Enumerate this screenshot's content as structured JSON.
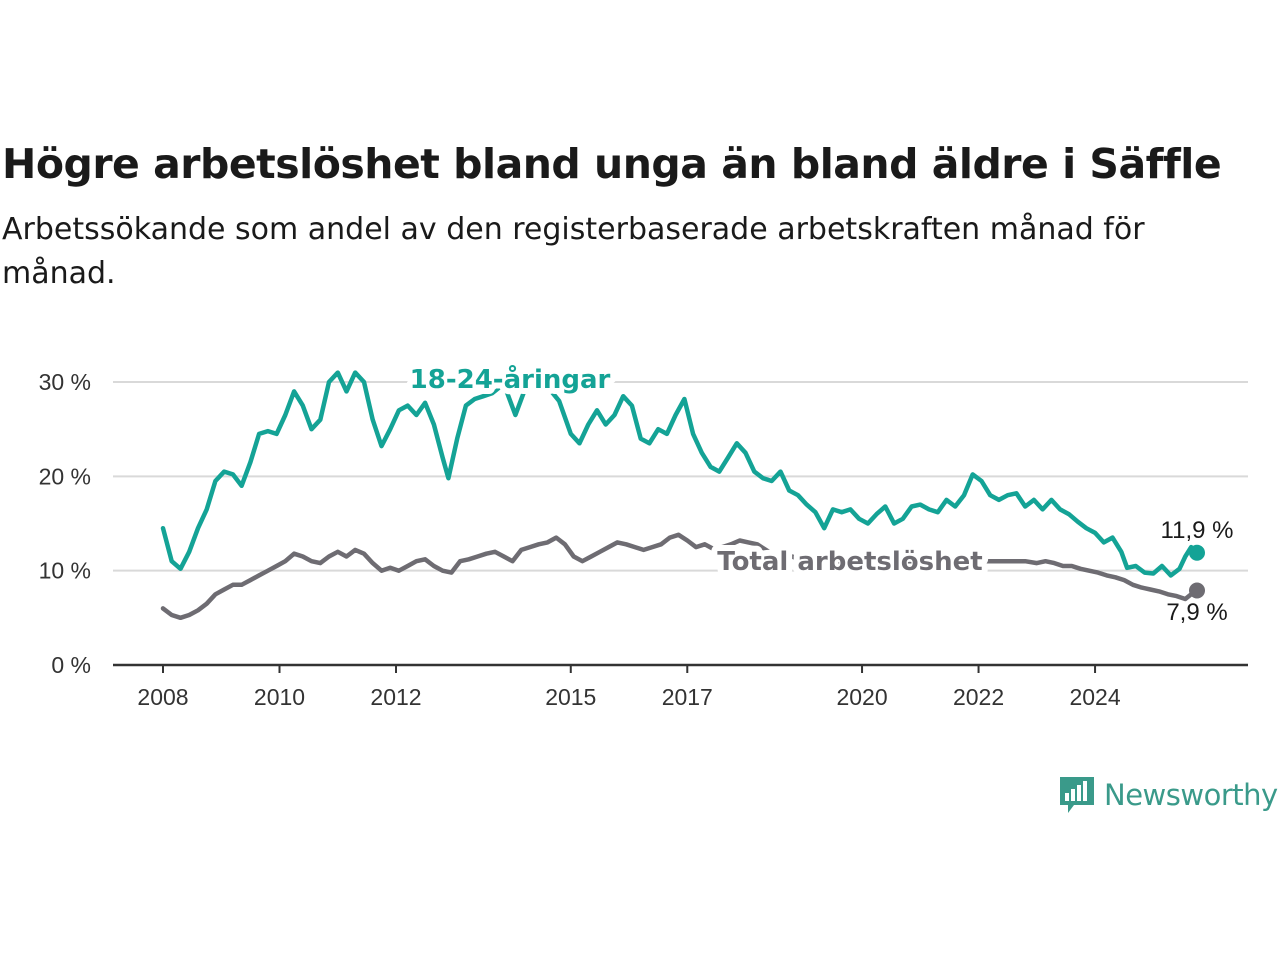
{
  "title": "Högre arbetslöshet bland unga än bland äldre i Säffle",
  "subtitle": "Arbetssökande som andel av den registerbaserade arbetskraften månad för månad.",
  "brand": {
    "name": "Newsworthy",
    "color": "#3a9a8a",
    "icon": "bar-chart-speech-bubble-icon"
  },
  "chart_data": {
    "type": "line",
    "ylim": [
      0,
      30
    ],
    "yticks": [
      0,
      10,
      20,
      30
    ],
    "ytick_labels": [
      "0 %",
      "10 %",
      "20 %",
      "30 %"
    ],
    "xlim": [
      2008,
      2025.75
    ],
    "xticks": [
      2008,
      2010,
      2012,
      2015,
      2017,
      2020,
      2022,
      2024
    ],
    "xtick_labels": [
      "2008",
      "2010",
      "2012",
      "2015",
      "2017",
      "2020",
      "2022",
      "2024"
    ],
    "grid": true,
    "series": [
      {
        "name": "18-24-åringar",
        "color": "#14a396",
        "end_label": "11,9 %",
        "points": [
          [
            2008.0,
            14.5
          ],
          [
            2008.15,
            11.0
          ],
          [
            2008.3,
            10.2
          ],
          [
            2008.45,
            12.0
          ],
          [
            2008.6,
            14.5
          ],
          [
            2008.75,
            16.5
          ],
          [
            2008.9,
            19.5
          ],
          [
            2009.05,
            20.5
          ],
          [
            2009.2,
            20.2
          ],
          [
            2009.35,
            19.0
          ],
          [
            2009.5,
            21.5
          ],
          [
            2009.65,
            24.5
          ],
          [
            2009.8,
            24.8
          ],
          [
            2009.95,
            24.5
          ],
          [
            2010.1,
            26.5
          ],
          [
            2010.25,
            29.0
          ],
          [
            2010.4,
            27.5
          ],
          [
            2010.55,
            25.0
          ],
          [
            2010.7,
            26.0
          ],
          [
            2010.85,
            30.0
          ],
          [
            2011.0,
            31.0
          ],
          [
            2011.15,
            29.0
          ],
          [
            2011.3,
            31.0
          ],
          [
            2011.45,
            30.0
          ],
          [
            2011.6,
            26.0
          ],
          [
            2011.75,
            23.2
          ],
          [
            2011.9,
            25.0
          ],
          [
            2012.05,
            27.0
          ],
          [
            2012.2,
            27.5
          ],
          [
            2012.35,
            26.5
          ],
          [
            2012.5,
            27.8
          ],
          [
            2012.65,
            25.5
          ],
          [
            2012.8,
            22.0
          ],
          [
            2012.9,
            19.8
          ],
          [
            2013.05,
            24.0
          ],
          [
            2013.2,
            27.5
          ],
          [
            2013.35,
            28.2
          ],
          [
            2013.5,
            28.5
          ],
          [
            2013.65,
            28.8
          ],
          [
            2013.85,
            29.8
          ],
          [
            2014.05,
            26.5
          ],
          [
            2014.2,
            29.0
          ],
          [
            2014.4,
            30.0
          ],
          [
            2014.6,
            29.5
          ],
          [
            2014.8,
            28.0
          ],
          [
            2015.0,
            24.5
          ],
          [
            2015.15,
            23.5
          ],
          [
            2015.3,
            25.5
          ],
          [
            2015.45,
            27.0
          ],
          [
            2015.6,
            25.5
          ],
          [
            2015.75,
            26.5
          ],
          [
            2015.9,
            28.5
          ],
          [
            2016.05,
            27.5
          ],
          [
            2016.2,
            24.0
          ],
          [
            2016.35,
            23.5
          ],
          [
            2016.5,
            25.0
          ],
          [
            2016.65,
            24.5
          ],
          [
            2016.8,
            26.5
          ],
          [
            2016.95,
            28.2
          ],
          [
            2017.1,
            24.5
          ],
          [
            2017.25,
            22.5
          ],
          [
            2017.4,
            21.0
          ],
          [
            2017.55,
            20.5
          ],
          [
            2017.7,
            22.0
          ],
          [
            2017.85,
            23.5
          ],
          [
            2018.0,
            22.5
          ],
          [
            2018.15,
            20.5
          ],
          [
            2018.3,
            19.8
          ],
          [
            2018.45,
            19.5
          ],
          [
            2018.6,
            20.5
          ],
          [
            2018.75,
            18.5
          ],
          [
            2018.9,
            18.0
          ],
          [
            2019.05,
            17.0
          ],
          [
            2019.2,
            16.2
          ],
          [
            2019.35,
            14.5
          ],
          [
            2019.5,
            16.5
          ],
          [
            2019.65,
            16.2
          ],
          [
            2019.8,
            16.5
          ],
          [
            2019.95,
            15.5
          ],
          [
            2020.1,
            15.0
          ],
          [
            2020.25,
            16.0
          ],
          [
            2020.4,
            16.8
          ],
          [
            2020.55,
            15.0
          ],
          [
            2020.7,
            15.5
          ],
          [
            2020.85,
            16.8
          ],
          [
            2021.0,
            17.0
          ],
          [
            2021.15,
            16.5
          ],
          [
            2021.3,
            16.2
          ],
          [
            2021.45,
            17.5
          ],
          [
            2021.6,
            16.8
          ],
          [
            2021.75,
            18.0
          ],
          [
            2021.9,
            20.2
          ],
          [
            2022.05,
            19.5
          ],
          [
            2022.2,
            18.0
          ],
          [
            2022.35,
            17.5
          ],
          [
            2022.5,
            18.0
          ],
          [
            2022.65,
            18.2
          ],
          [
            2022.8,
            16.8
          ],
          [
            2022.95,
            17.5
          ],
          [
            2023.1,
            16.5
          ],
          [
            2023.25,
            17.5
          ],
          [
            2023.4,
            16.5
          ],
          [
            2023.55,
            16.0
          ],
          [
            2023.7,
            15.2
          ],
          [
            2023.85,
            14.5
          ],
          [
            2024.0,
            14.0
          ],
          [
            2024.15,
            13.0
          ],
          [
            2024.3,
            13.5
          ],
          [
            2024.45,
            12.0
          ],
          [
            2024.55,
            10.3
          ],
          [
            2024.7,
            10.5
          ],
          [
            2024.85,
            9.8
          ],
          [
            2025.0,
            9.7
          ],
          [
            2025.15,
            10.5
          ],
          [
            2025.3,
            9.5
          ],
          [
            2025.45,
            10.2
          ],
          [
            2025.55,
            11.5
          ],
          [
            2025.65,
            12.5
          ],
          [
            2025.75,
            11.9
          ]
        ]
      },
      {
        "name": "Total arbetslöshet",
        "color": "#6e6c72",
        "end_label": "7,9 %",
        "points": [
          [
            2008.0,
            6.0
          ],
          [
            2008.15,
            5.3
          ],
          [
            2008.3,
            5.0
          ],
          [
            2008.45,
            5.3
          ],
          [
            2008.6,
            5.8
          ],
          [
            2008.75,
            6.5
          ],
          [
            2008.9,
            7.5
          ],
          [
            2009.05,
            8.0
          ],
          [
            2009.2,
            8.5
          ],
          [
            2009.35,
            8.5
          ],
          [
            2009.5,
            9.0
          ],
          [
            2009.65,
            9.5
          ],
          [
            2009.8,
            10.0
          ],
          [
            2009.95,
            10.5
          ],
          [
            2010.1,
            11.0
          ],
          [
            2010.25,
            11.8
          ],
          [
            2010.4,
            11.5
          ],
          [
            2010.55,
            11.0
          ],
          [
            2010.7,
            10.8
          ],
          [
            2010.85,
            11.5
          ],
          [
            2011.0,
            12.0
          ],
          [
            2011.15,
            11.5
          ],
          [
            2011.3,
            12.2
          ],
          [
            2011.45,
            11.8
          ],
          [
            2011.6,
            10.8
          ],
          [
            2011.75,
            10.0
          ],
          [
            2011.9,
            10.3
          ],
          [
            2012.05,
            10.0
          ],
          [
            2012.2,
            10.5
          ],
          [
            2012.35,
            11.0
          ],
          [
            2012.5,
            11.2
          ],
          [
            2012.65,
            10.5
          ],
          [
            2012.8,
            10.0
          ],
          [
            2012.95,
            9.8
          ],
          [
            2013.1,
            11.0
          ],
          [
            2013.25,
            11.2
          ],
          [
            2013.4,
            11.5
          ],
          [
            2013.55,
            11.8
          ],
          [
            2013.7,
            12.0
          ],
          [
            2013.85,
            11.5
          ],
          [
            2014.0,
            11.0
          ],
          [
            2014.15,
            12.2
          ],
          [
            2014.3,
            12.5
          ],
          [
            2014.45,
            12.8
          ],
          [
            2014.6,
            13.0
          ],
          [
            2014.75,
            13.5
          ],
          [
            2014.9,
            12.8
          ],
          [
            2015.05,
            11.5
          ],
          [
            2015.2,
            11.0
          ],
          [
            2015.35,
            11.5
          ],
          [
            2015.5,
            12.0
          ],
          [
            2015.65,
            12.5
          ],
          [
            2015.8,
            13.0
          ],
          [
            2015.95,
            12.8
          ],
          [
            2016.1,
            12.5
          ],
          [
            2016.25,
            12.2
          ],
          [
            2016.4,
            12.5
          ],
          [
            2016.55,
            12.8
          ],
          [
            2016.7,
            13.5
          ],
          [
            2016.85,
            13.8
          ],
          [
            2017.0,
            13.2
          ],
          [
            2017.15,
            12.5
          ],
          [
            2017.3,
            12.8
          ],
          [
            2017.45,
            12.3
          ],
          [
            2017.6,
            12.5
          ],
          [
            2017.75,
            12.8
          ],
          [
            2017.9,
            13.2
          ],
          [
            2018.05,
            13.0
          ],
          [
            2018.2,
            12.8
          ],
          [
            2018.4,
            12.0
          ],
          [
            2018.6,
            11.5
          ],
          [
            2018.8,
            11.5
          ],
          [
            2019.0,
            11.0
          ],
          [
            2019.2,
            11.0
          ],
          [
            2019.4,
            11.0
          ],
          [
            2019.6,
            11.0
          ],
          [
            2019.8,
            11.0
          ],
          [
            2020.0,
            11.0
          ],
          [
            2020.2,
            11.0
          ],
          [
            2020.4,
            11.2
          ],
          [
            2020.6,
            11.0
          ],
          [
            2020.8,
            11.0
          ],
          [
            2021.0,
            11.0
          ],
          [
            2021.2,
            11.0
          ],
          [
            2021.4,
            11.0
          ],
          [
            2021.6,
            11.0
          ],
          [
            2021.8,
            11.0
          ],
          [
            2022.0,
            11.0
          ],
          [
            2022.2,
            11.0
          ],
          [
            2022.4,
            11.0
          ],
          [
            2022.6,
            11.0
          ],
          [
            2022.8,
            11.0
          ],
          [
            2023.0,
            10.8
          ],
          [
            2023.15,
            11.0
          ],
          [
            2023.3,
            10.8
          ],
          [
            2023.45,
            10.5
          ],
          [
            2023.6,
            10.5
          ],
          [
            2023.75,
            10.2
          ],
          [
            2023.9,
            10.0
          ],
          [
            2024.05,
            9.8
          ],
          [
            2024.2,
            9.5
          ],
          [
            2024.35,
            9.3
          ],
          [
            2024.5,
            9.0
          ],
          [
            2024.65,
            8.5
          ],
          [
            2024.8,
            8.2
          ],
          [
            2024.95,
            8.0
          ],
          [
            2025.1,
            7.8
          ],
          [
            2025.25,
            7.5
          ],
          [
            2025.4,
            7.3
          ],
          [
            2025.55,
            7.0
          ],
          [
            2025.65,
            7.5
          ],
          [
            2025.75,
            7.9
          ]
        ]
      }
    ]
  }
}
